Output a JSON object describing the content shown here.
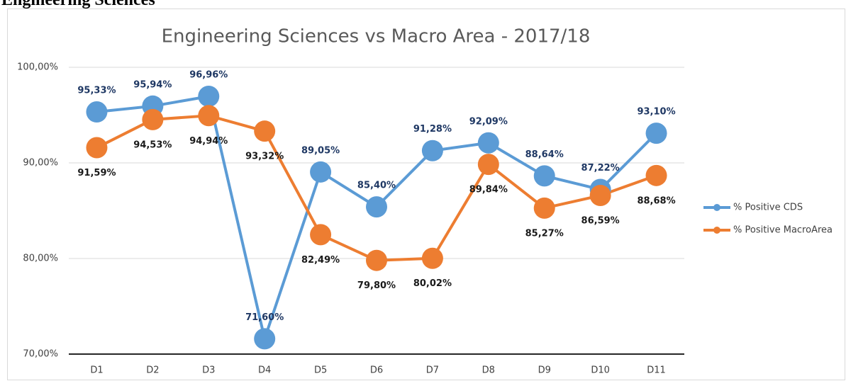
{
  "page_heading": "Engineering Sciences",
  "chart_data": {
    "type": "line",
    "title": "Engineering Sciences vs Macro Area - 2017/18",
    "categories": [
      "D1",
      "D2",
      "D3",
      "D4",
      "D5",
      "D6",
      "D7",
      "D8",
      "D9",
      "D10",
      "D11"
    ],
    "series": [
      {
        "name": "% Positive CDS",
        "color": "#5b9bd5",
        "values": [
          95.33,
          95.94,
          96.96,
          71.6,
          89.05,
          85.4,
          91.28,
          92.09,
          88.64,
          87.22,
          93.1
        ],
        "value_labels": [
          "95,33%",
          "95,94%",
          "96,96%",
          "71,60%",
          "89,05%",
          "85,40%",
          "91,28%",
          "92,09%",
          "88,64%",
          "87,22%",
          "93,10%"
        ]
      },
      {
        "name": "% Positive MacroArea",
        "color": "#ed7d31",
        "values": [
          91.59,
          94.53,
          94.94,
          93.32,
          82.49,
          79.8,
          80.02,
          89.84,
          85.27,
          86.59,
          88.68
        ],
        "value_labels": [
          "91,59%",
          "94,53%",
          "94,94%",
          "93,32%",
          "82,49%",
          "79,80%",
          "80,02%",
          "89,84%",
          "85,27%",
          "86,59%",
          "88,68%"
        ]
      }
    ],
    "ylim": [
      70,
      100
    ],
    "yticks": [
      {
        "value": 70,
        "label": "70,00%"
      },
      {
        "value": 80,
        "label": "80,00%"
      },
      {
        "value": 90,
        "label": "90,00%"
      },
      {
        "value": 100,
        "label": "100,00%"
      }
    ],
    "grid": true,
    "legend": "right"
  }
}
